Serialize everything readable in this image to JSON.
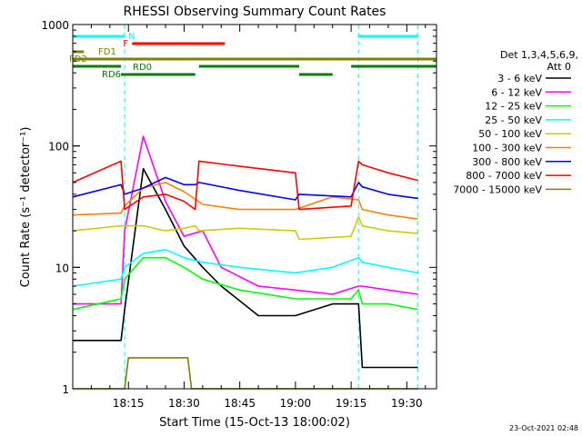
{
  "chart_data": {
    "type": "line",
    "title": "RHESSI Observing Summary Count Rates",
    "xlabel": "Start Time (15-Oct-13 18:00:02)",
    "ylabel": "Count Rate (s⁻¹ detector⁻¹)",
    "y_scale": "log",
    "ylim": [
      1,
      1000
    ],
    "xlim": [
      "18:00",
      "19:38"
    ],
    "x_ticks": [
      "18:15",
      "18:30",
      "18:45",
      "19:00",
      "19:15",
      "19:30"
    ],
    "y_ticks": [
      "1",
      "10",
      "100",
      "1000"
    ],
    "grid": false,
    "legend_position": "top-right",
    "legend_header": [
      "Det 1,3,4,5,6,9,",
      "Att 0"
    ],
    "timestamp": "23-Oct-2021 02:48",
    "series": [
      {
        "name": "3 - 6 keV",
        "color": "#000000",
        "x": [
          "18:00",
          "18:13",
          "18:14",
          "18:19",
          "18:25",
          "18:30",
          "18:35",
          "18:40",
          "18:50",
          "19:00",
          "19:10",
          "19:17",
          "19:18",
          "19:25",
          "19:33"
        ],
        "values": [
          2.5,
          2.5,
          4.5,
          65,
          30,
          15,
          10,
          7,
          4,
          4,
          5,
          5,
          1.5,
          1.5,
          1.5
        ]
      },
      {
        "name": "6 - 12 keV",
        "color": "#ff00ff",
        "x": [
          "18:00",
          "18:13",
          "18:14",
          "18:19",
          "18:25",
          "18:30",
          "18:35",
          "18:40",
          "18:50",
          "19:00",
          "19:10",
          "19:17",
          "19:18",
          "19:25",
          "19:33"
        ],
        "values": [
          5,
          5,
          20,
          120,
          35,
          18,
          20,
          10,
          7,
          6.5,
          6,
          7,
          7,
          6.5,
          6
        ]
      },
      {
        "name": "12 - 25 keV",
        "color": "#00ff00",
        "x": [
          "18:00",
          "18:13",
          "18:14",
          "18:19",
          "18:25",
          "18:30",
          "18:35",
          "18:45",
          "19:00",
          "19:15",
          "19:17",
          "19:18",
          "19:25",
          "19:33"
        ],
        "values": [
          4.5,
          5.5,
          8,
          12,
          12,
          10,
          8,
          6.5,
          5.5,
          5.5,
          6.5,
          5,
          5,
          4.5
        ]
      },
      {
        "name": "25 - 50 keV",
        "color": "#00ffff",
        "x": [
          "18:00",
          "18:13",
          "18:14",
          "18:19",
          "18:25",
          "18:30",
          "18:35",
          "18:45",
          "19:00",
          "19:10",
          "19:17",
          "19:18",
          "19:25",
          "19:33"
        ],
        "values": [
          7,
          8,
          10,
          13,
          14,
          12,
          11,
          10,
          9,
          10,
          12,
          11,
          10,
          9
        ]
      },
      {
        "name": "50 - 100 keV",
        "color": "#cccc00",
        "x": [
          "18:00",
          "18:13",
          "18:14",
          "18:19",
          "18:25",
          "18:30",
          "18:33",
          "18:34",
          "18:45",
          "19:00",
          "19:01",
          "19:15",
          "19:17",
          "19:18",
          "19:25",
          "19:33"
        ],
        "values": [
          20,
          22,
          22,
          22,
          20,
          21,
          22,
          20,
          21,
          20,
          17,
          18,
          26,
          22,
          20,
          19
        ]
      },
      {
        "name": "100 - 300 keV",
        "color": "#ff8000",
        "x": [
          "18:00",
          "18:13",
          "18:14",
          "18:19",
          "18:25",
          "18:30",
          "18:35",
          "18:45",
          "19:00",
          "19:10",
          "19:17",
          "19:18",
          "19:25",
          "19:33"
        ],
        "values": [
          27,
          28,
          32,
          45,
          50,
          42,
          33,
          30,
          30,
          38,
          36,
          30,
          27,
          25
        ]
      },
      {
        "name": "300 - 800 keV",
        "color": "#0000ff",
        "x": [
          "18:00",
          "18:13",
          "18:14",
          "18:19",
          "18:25",
          "18:30",
          "18:33",
          "18:34",
          "18:45",
          "19:00",
          "19:01",
          "19:15",
          "19:17",
          "19:18",
          "19:25",
          "19:33"
        ],
        "values": [
          38,
          48,
          40,
          45,
          55,
          48,
          48,
          50,
          43,
          36,
          40,
          38,
          50,
          46,
          40,
          37
        ]
      },
      {
        "name": "800 - 7000 keV",
        "color": "#ff0000",
        "x": [
          "18:00",
          "18:13",
          "18:14",
          "18:19",
          "18:25",
          "18:30",
          "18:33",
          "18:34",
          "18:45",
          "19:00",
          "19:01",
          "19:15",
          "19:17",
          "19:18",
          "19:25",
          "19:33"
        ],
        "values": [
          50,
          75,
          30,
          38,
          40,
          35,
          30,
          75,
          68,
          60,
          30,
          32,
          75,
          70,
          60,
          52
        ]
      },
      {
        "name": "7000 - 15000 keV",
        "color": "#808000",
        "x": [
          "18:00",
          "18:14",
          "18:15",
          "18:31",
          "18:32",
          "19:33"
        ],
        "values": [
          1,
          1,
          1.8,
          1.8,
          1,
          1
        ]
      }
    ],
    "annotations": [
      {
        "label": "N",
        "color": "#00ffff",
        "segments": [
          [
            "18:00",
            "18:14"
          ],
          [
            "19:17",
            "19:33"
          ]
        ]
      },
      {
        "label": "F",
        "color": "#ff0000",
        "segments": [
          [
            "18:16",
            "18:41"
          ]
        ]
      },
      {
        "label": "FD1",
        "color": "#808000",
        "segments": [
          [
            "18:00",
            "18:03"
          ]
        ]
      },
      {
        "label": "FD2",
        "color": "#808000",
        "segments": [
          [
            "18:00",
            "19:38"
          ]
        ]
      },
      {
        "label": "RD0",
        "color": "#008000",
        "segments": [
          [
            "18:00",
            "18:13"
          ],
          [
            "18:34",
            "19:01"
          ],
          [
            "19:15",
            "19:38"
          ]
        ]
      },
      {
        "label": "RD6",
        "color": "#008000",
        "segments": [
          [
            "18:13",
            "18:33"
          ],
          [
            "19:01",
            "19:10"
          ]
        ]
      }
    ],
    "markers": [
      {
        "x": "18:14",
        "color": "#00ffff"
      },
      {
        "x": "19:17",
        "color": "#00ffff"
      },
      {
        "x": "19:33",
        "color": "#00ffff"
      }
    ]
  }
}
